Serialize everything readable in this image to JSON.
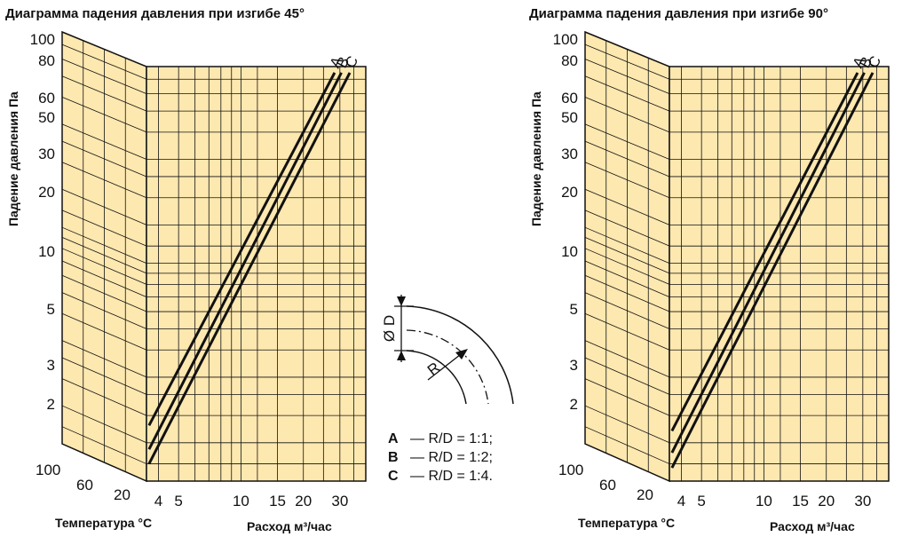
{
  "chart_data": [
    {
      "type": "line",
      "title": "Диаграмма падения давления при изгибе 45°",
      "ylabel": "Падение давления Па",
      "xlabel": "Расход м³/час",
      "temperature_label": "Температура °C",
      "x_scale": "log",
      "y_scale": "log",
      "xlim": [
        3.5,
        40
      ],
      "ylim": [
        1,
        80
      ],
      "x_ticks": [
        "4",
        "5",
        "10",
        "15",
        "20",
        "30"
      ],
      "y_ticks": [
        "100",
        "80",
        "60",
        "50",
        "30",
        "20",
        "10",
        "5",
        "3",
        "2"
      ],
      "temperature_ticks": [
        "100",
        "60",
        "20"
      ],
      "series": [
        {
          "name": "A",
          "x": [
            3.6,
            28.3
          ],
          "y": [
            1.8,
            75
          ]
        },
        {
          "name": "B",
          "x": [
            3.6,
            30.5
          ],
          "y": [
            1.4,
            75
          ]
        },
        {
          "name": "C",
          "x": [
            3.6,
            33.5
          ],
          "y": [
            1.2,
            75
          ]
        }
      ]
    },
    {
      "type": "line",
      "title": "Диаграмма падения давления при изгибе 90°",
      "ylabel": "Падение давления Па",
      "xlabel": "Расход м³/час",
      "temperature_label": "Температура °C",
      "x_scale": "log",
      "y_scale": "log",
      "xlim": [
        3.5,
        40
      ],
      "ylim": [
        1,
        80
      ],
      "x_ticks": [
        "4",
        "5",
        "10",
        "15",
        "20",
        "30"
      ],
      "y_ticks": [
        "100",
        "80",
        "60",
        "50",
        "30",
        "20",
        "10",
        "5",
        "3",
        "2"
      ],
      "temperature_ticks": [
        "100",
        "60",
        "20"
      ],
      "series": [
        {
          "name": "A",
          "x": [
            3.6,
            28.3
          ],
          "y": [
            1.7,
            75
          ]
        },
        {
          "name": "B",
          "x": [
            3.6,
            30.5
          ],
          "y": [
            1.35,
            75
          ]
        },
        {
          "name": "C",
          "x": [
            3.6,
            33.5
          ],
          "y": [
            1.15,
            75
          ]
        }
      ]
    }
  ],
  "diagram": {
    "diameter_label": "Ø D",
    "radius_label": "R"
  },
  "legend": [
    {
      "key": "A",
      "text": "— R/D = 1:1;"
    },
    {
      "key": "B",
      "text": "— R/D = 1:2;"
    },
    {
      "key": "C",
      "text": "— R/D = 1:4."
    }
  ],
  "colors": {
    "chart_fill": "#fde8b0",
    "line": "#111111"
  }
}
